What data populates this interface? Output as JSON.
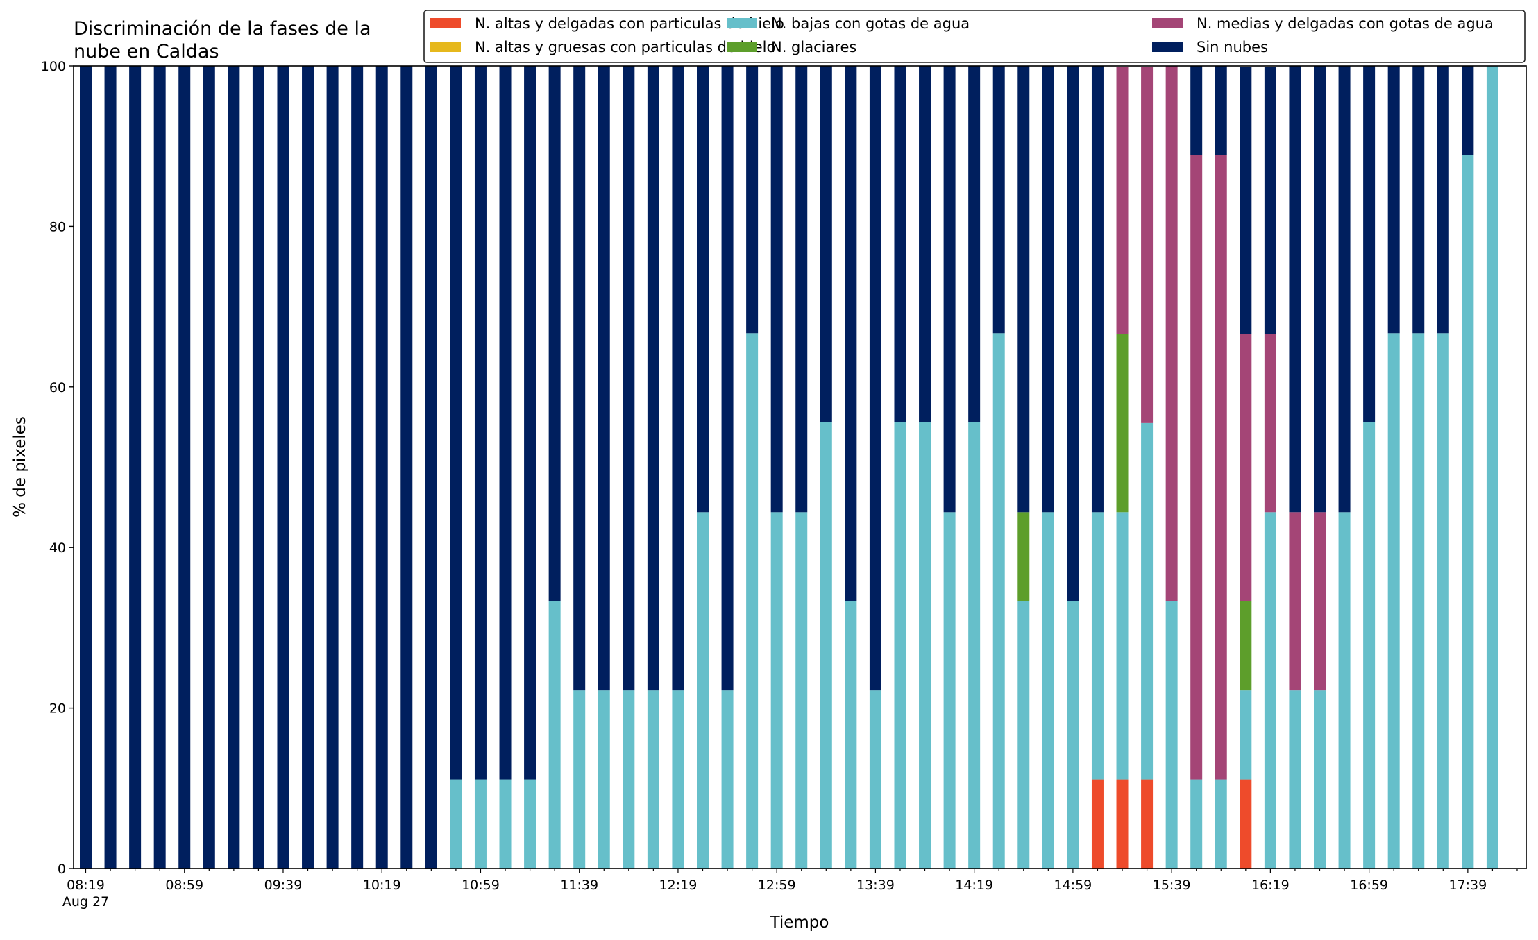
{
  "chart_data": {
    "type": "bar",
    "stacked": true,
    "title_lines": [
      "Discriminación de la fases de la",
      "nube en Caldas"
    ],
    "xlabel": "Tiempo",
    "ylabel": "% de pixeles",
    "ylim": [
      0,
      100
    ],
    "yticks": [
      "0",
      "20",
      "40",
      "60",
      "80",
      "100"
    ],
    "xtick_labels": [
      "08:19",
      "08:59",
      "09:39",
      "10:19",
      "10:59",
      "11:39",
      "12:19",
      "12:59",
      "13:39",
      "14:19",
      "14:59",
      "15:39",
      "16:19",
      "16:59",
      "17:39"
    ],
    "xtick_sublabel": "Aug 27",
    "grid": false,
    "legend_position": "top-right",
    "categories": [
      "08:19",
      "08:29",
      "08:39",
      "08:49",
      "08:59",
      "09:09",
      "09:19",
      "09:29",
      "09:39",
      "09:49",
      "09:59",
      "10:09",
      "10:19",
      "10:29",
      "10:39",
      "10:49",
      "10:59",
      "11:09",
      "11:19",
      "11:29",
      "11:39",
      "11:49",
      "11:59",
      "12:09",
      "12:19",
      "12:29",
      "12:39",
      "12:49",
      "12:59",
      "13:09",
      "13:19",
      "13:29",
      "13:39",
      "13:49",
      "13:59",
      "14:09",
      "14:19",
      "14:29",
      "14:39",
      "14:49",
      "14:59",
      "15:09",
      "15:19",
      "15:29",
      "15:39",
      "15:49",
      "15:59",
      "16:09",
      "16:19",
      "16:29",
      "16:39",
      "16:49",
      "16:59",
      "17:09",
      "17:19",
      "17:29",
      "17:39",
      "17:49"
    ],
    "series": [
      {
        "name": "N. altas y delgadas con particulas de hielo",
        "color": "#ee4b2b",
        "values": [
          0,
          0,
          0,
          0,
          0,
          0,
          0,
          0,
          0,
          0,
          0,
          0,
          0,
          0,
          0,
          0,
          0,
          0,
          0,
          0,
          0,
          0,
          0,
          0,
          0,
          0,
          0,
          0,
          0,
          0,
          0,
          0,
          0,
          0,
          0,
          0,
          0,
          0,
          0,
          0,
          0,
          11.1,
          11.1,
          11.1,
          0,
          0,
          0,
          11.1,
          0,
          0,
          0,
          0,
          0,
          0,
          0,
          0,
          0,
          0
        ]
      },
      {
        "name": "N. altas y gruesas con particulas de hielo",
        "color": "#e6b81c",
        "values": [
          0,
          0,
          0,
          0,
          0,
          0,
          0,
          0,
          0,
          0,
          0,
          0,
          0,
          0,
          0,
          0,
          0,
          0,
          0,
          0,
          0,
          0,
          0,
          0,
          0,
          0,
          0,
          0,
          0,
          0,
          0,
          0,
          0,
          0,
          0,
          0,
          0,
          0,
          0,
          0,
          0,
          0,
          0,
          0,
          0,
          0,
          0,
          0,
          0,
          0,
          0,
          0,
          0,
          0,
          0,
          0,
          0,
          0
        ]
      },
      {
        "name": "N. bajas con gotas de agua",
        "color": "#66bfca",
        "values": [
          0,
          0,
          0,
          0,
          0,
          0,
          0,
          0,
          0,
          0,
          0,
          0,
          0,
          0,
          0,
          11.1,
          11.1,
          11.1,
          11.1,
          33.3,
          22.2,
          22.2,
          22.2,
          22.2,
          22.2,
          44.4,
          22.2,
          66.7,
          44.4,
          44.4,
          55.6,
          33.3,
          22.2,
          55.6,
          55.6,
          44.4,
          55.6,
          66.7,
          33.3,
          44.4,
          33.3,
          33.3,
          33.3,
          44.4,
          33.3,
          11.1,
          11.1,
          11.1,
          44.4,
          22.2,
          22.2,
          44.4,
          55.6,
          66.7,
          66.7,
          66.7,
          88.9,
          100
        ]
      },
      {
        "name": "N. glaciares",
        "color": "#5d9e2b",
        "values": [
          0,
          0,
          0,
          0,
          0,
          0,
          0,
          0,
          0,
          0,
          0,
          0,
          0,
          0,
          0,
          0,
          0,
          0,
          0,
          0,
          0,
          0,
          0,
          0,
          0,
          0,
          0,
          0,
          0,
          0,
          0,
          0,
          0,
          0,
          0,
          0,
          0,
          0,
          11.1,
          0,
          0,
          0,
          22.2,
          0,
          0,
          0,
          0,
          11.1,
          0,
          0,
          0,
          0,
          0,
          0,
          0,
          0,
          0,
          0
        ]
      },
      {
        "name": "N. medias y delgadas con gotas de agua",
        "color": "#a44576",
        "values": [
          0,
          0,
          0,
          0,
          0,
          0,
          0,
          0,
          0,
          0,
          0,
          0,
          0,
          0,
          0,
          0,
          0,
          0,
          0,
          0,
          0,
          0,
          0,
          0,
          0,
          0,
          0,
          0,
          0,
          0,
          0,
          0,
          0,
          0,
          0,
          0,
          0,
          0,
          0,
          0,
          0,
          0,
          33.3,
          44.4,
          66.7,
          77.8,
          77.8,
          33.3,
          22.2,
          22.2,
          22.2,
          0,
          0,
          0,
          0,
          0,
          0,
          0
        ]
      },
      {
        "name": "Sin nubes",
        "color": "#001f5e",
        "values": [
          100,
          100,
          100,
          100,
          100,
          100,
          100,
          100,
          100,
          100,
          100,
          100,
          100,
          100,
          100,
          88.9,
          88.9,
          88.9,
          88.9,
          66.7,
          77.8,
          77.8,
          77.8,
          77.8,
          77.8,
          55.6,
          77.8,
          33.3,
          55.6,
          55.6,
          44.4,
          66.7,
          77.8,
          44.4,
          44.4,
          55.6,
          44.4,
          33.3,
          55.6,
          55.6,
          66.7,
          55.6,
          0,
          0,
          0,
          11.1,
          11.1,
          33.3,
          33.3,
          55.6,
          55.6,
          55.6,
          44.4,
          33.3,
          33.3,
          33.3,
          11.1,
          0
        ]
      }
    ]
  }
}
